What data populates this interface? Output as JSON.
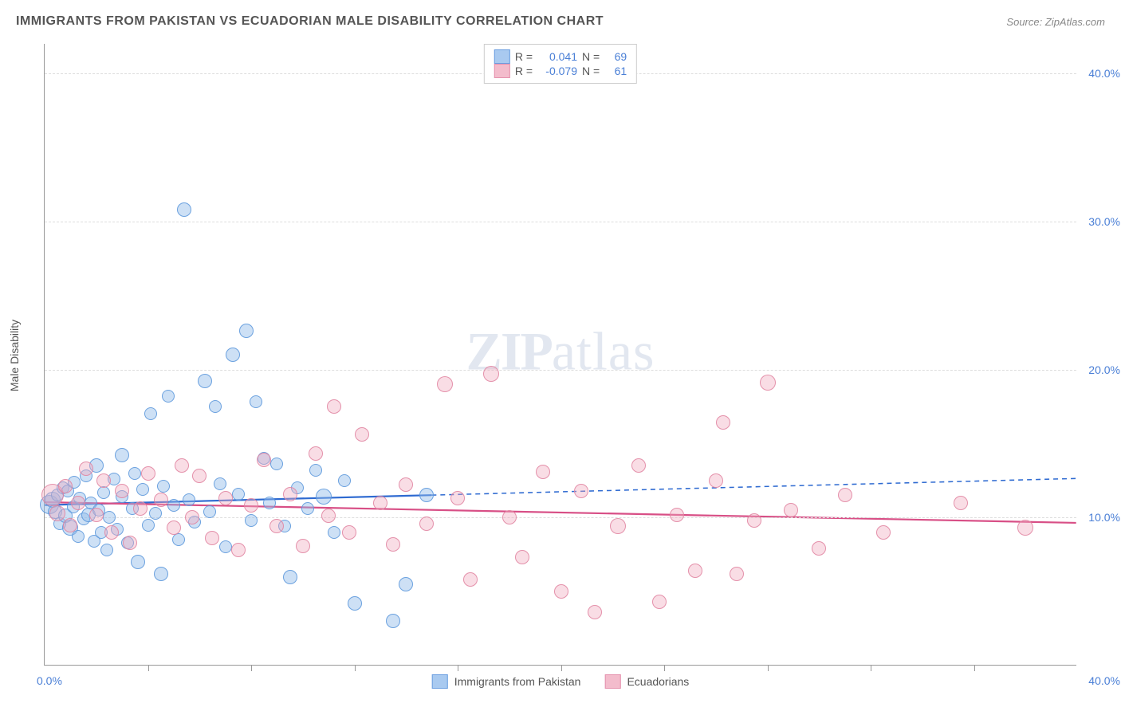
{
  "header": {
    "title": "IMMIGRANTS FROM PAKISTAN VS ECUADORIAN MALE DISABILITY CORRELATION CHART",
    "source_prefix": "Source:",
    "source_name": "ZipAtlas.com"
  },
  "watermark": {
    "zip": "ZIP",
    "atlas": "atlas"
  },
  "chart": {
    "type": "scatter",
    "ylabel": "Male Disability",
    "xlim": [
      0,
      40
    ],
    "ylim": [
      0,
      42
    ],
    "yticks": [
      {
        "v": 10,
        "label": "10.0%"
      },
      {
        "v": 20,
        "label": "20.0%"
      },
      {
        "v": 30,
        "label": "30.0%"
      },
      {
        "v": 40,
        "label": "40.0%"
      }
    ],
    "xticks_minor": [
      4,
      8,
      12,
      16,
      20,
      24,
      28,
      32,
      36
    ],
    "x_start_label": "0.0%",
    "x_end_label": "40.0%",
    "background_color": "#ffffff",
    "grid_color": "#dddddd",
    "axis_color": "#999999",
    "label_color": "#4a7fd6",
    "marker_radius_base": 8,
    "series": {
      "blue": {
        "label": "Immigrants from Pakistan",
        "fill": "rgba(144,186,233,0.45)",
        "stroke": "rgba(90,150,220,0.85)",
        "R": "0.041",
        "N": "69",
        "trend": {
          "y0": 10.8,
          "y1": 12.6,
          "solid_until_x": 15,
          "color": "#2e6ad1",
          "width": 2.2
        },
        "points": [
          [
            0.2,
            10.9,
            12
          ],
          [
            0.3,
            11.2,
            10
          ],
          [
            0.4,
            10.4,
            9
          ],
          [
            0.5,
            11.5,
            8
          ],
          [
            0.6,
            9.6,
            8
          ],
          [
            0.7,
            12.0,
            8
          ],
          [
            0.8,
            10.1,
            9
          ],
          [
            0.9,
            11.8,
            8
          ],
          [
            1.0,
            9.3,
            10
          ],
          [
            1.1,
            10.7,
            8
          ],
          [
            1.15,
            12.4,
            8
          ],
          [
            1.3,
            8.7,
            8
          ],
          [
            1.35,
            11.3,
            8
          ],
          [
            1.5,
            9.9,
            8
          ],
          [
            1.6,
            12.8,
            8
          ],
          [
            1.7,
            10.2,
            9
          ],
          [
            1.8,
            11.0,
            8
          ],
          [
            1.9,
            8.4,
            8
          ],
          [
            2.0,
            13.5,
            9
          ],
          [
            2.1,
            10.5,
            8
          ],
          [
            2.2,
            9.0,
            8
          ],
          [
            2.3,
            11.7,
            8
          ],
          [
            2.4,
            7.8,
            8
          ],
          [
            2.5,
            10.0,
            8
          ],
          [
            2.7,
            12.6,
            8
          ],
          [
            2.8,
            9.2,
            8
          ],
          [
            3.0,
            11.4,
            8
          ],
          [
            3.0,
            14.2,
            9
          ],
          [
            3.2,
            8.3,
            8
          ],
          [
            3.4,
            10.6,
            8
          ],
          [
            3.5,
            13.0,
            8
          ],
          [
            3.6,
            7.0,
            9
          ],
          [
            3.8,
            11.9,
            8
          ],
          [
            4.0,
            9.5,
            8
          ],
          [
            4.1,
            17.0,
            8
          ],
          [
            4.3,
            10.3,
            8
          ],
          [
            4.5,
            6.2,
            9
          ],
          [
            4.6,
            12.1,
            8
          ],
          [
            4.8,
            18.2,
            8
          ],
          [
            5.0,
            10.8,
            8
          ],
          [
            5.2,
            8.5,
            8
          ],
          [
            5.4,
            30.8,
            9
          ],
          [
            5.6,
            11.2,
            8
          ],
          [
            5.8,
            9.7,
            8
          ],
          [
            6.2,
            19.2,
            9
          ],
          [
            6.4,
            10.4,
            8
          ],
          [
            6.6,
            17.5,
            8
          ],
          [
            6.8,
            12.3,
            8
          ],
          [
            7.0,
            8.0,
            8
          ],
          [
            7.3,
            21.0,
            9
          ],
          [
            7.5,
            11.6,
            8
          ],
          [
            7.8,
            22.6,
            9
          ],
          [
            8.0,
            9.8,
            8
          ],
          [
            8.2,
            17.8,
            8
          ],
          [
            8.5,
            14.0,
            8
          ],
          [
            8.7,
            11.0,
            8
          ],
          [
            9.0,
            13.6,
            8
          ],
          [
            9.3,
            9.4,
            8
          ],
          [
            9.5,
            6.0,
            9
          ],
          [
            9.8,
            12.0,
            8
          ],
          [
            10.2,
            10.6,
            8
          ],
          [
            10.5,
            13.2,
            8
          ],
          [
            10.8,
            11.4,
            10
          ],
          [
            11.2,
            9.0,
            8
          ],
          [
            11.6,
            12.5,
            8
          ],
          [
            12.0,
            4.2,
            9
          ],
          [
            13.5,
            3.0,
            9
          ],
          [
            14.0,
            5.5,
            9
          ],
          [
            14.8,
            11.5,
            9
          ]
        ]
      },
      "pink": {
        "label": "Ecuadorians",
        "fill": "rgba(240,170,190,0.40)",
        "stroke": "rgba(225,130,160,0.85)",
        "R": "-0.079",
        "N": "61",
        "trend": {
          "y0": 11.0,
          "y1": 9.6,
          "solid_until_x": 40,
          "color": "#d84f86",
          "width": 2.2
        },
        "points": [
          [
            0.3,
            11.5,
            14
          ],
          [
            0.5,
            10.3,
            10
          ],
          [
            0.8,
            12.1,
            9
          ],
          [
            1.0,
            9.5,
            9
          ],
          [
            1.3,
            11.0,
            9
          ],
          [
            1.6,
            13.3,
            9
          ],
          [
            2.0,
            10.2,
            9
          ],
          [
            2.3,
            12.5,
            9
          ],
          [
            2.6,
            9.0,
            9
          ],
          [
            3.0,
            11.8,
            9
          ],
          [
            3.3,
            8.3,
            9
          ],
          [
            3.7,
            10.6,
            9
          ],
          [
            4.0,
            13.0,
            9
          ],
          [
            4.5,
            11.2,
            9
          ],
          [
            5.0,
            9.3,
            9
          ],
          [
            5.3,
            13.5,
            9
          ],
          [
            5.7,
            10.0,
            9
          ],
          [
            6.0,
            12.8,
            9
          ],
          [
            6.5,
            8.6,
            9
          ],
          [
            7.0,
            11.3,
            9
          ],
          [
            7.5,
            7.8,
            9
          ],
          [
            8.0,
            10.8,
            9
          ],
          [
            8.5,
            13.9,
            9
          ],
          [
            9.0,
            9.4,
            9
          ],
          [
            9.5,
            11.6,
            9
          ],
          [
            10.0,
            8.1,
            9
          ],
          [
            10.5,
            14.3,
            9
          ],
          [
            11.0,
            10.1,
            9
          ],
          [
            11.2,
            17.5,
            9
          ],
          [
            11.8,
            9.0,
            9
          ],
          [
            12.3,
            15.6,
            9
          ],
          [
            13.0,
            11.0,
            9
          ],
          [
            13.5,
            8.2,
            9
          ],
          [
            14.0,
            12.2,
            9
          ],
          [
            14.8,
            9.6,
            9
          ],
          [
            15.5,
            19.0,
            10
          ],
          [
            16.0,
            11.3,
            9
          ],
          [
            16.5,
            5.8,
            9
          ],
          [
            17.3,
            19.7,
            10
          ],
          [
            18.0,
            10.0,
            9
          ],
          [
            18.5,
            7.3,
            9
          ],
          [
            19.3,
            13.1,
            9
          ],
          [
            20.0,
            5.0,
            9
          ],
          [
            20.8,
            11.8,
            9
          ],
          [
            21.3,
            3.6,
            9
          ],
          [
            22.2,
            9.4,
            10
          ],
          [
            23.0,
            13.5,
            9
          ],
          [
            23.8,
            4.3,
            9
          ],
          [
            24.5,
            10.2,
            9
          ],
          [
            25.2,
            6.4,
            9
          ],
          [
            26.0,
            12.5,
            9
          ],
          [
            26.3,
            16.4,
            9
          ],
          [
            26.8,
            6.2,
            9
          ],
          [
            27.5,
            9.8,
            9
          ],
          [
            28.0,
            19.1,
            10
          ],
          [
            28.9,
            10.5,
            9
          ],
          [
            30.0,
            7.9,
            9
          ],
          [
            31.0,
            11.5,
            9
          ],
          [
            32.5,
            9.0,
            9
          ],
          [
            35.5,
            11.0,
            9
          ],
          [
            38.0,
            9.3,
            10
          ]
        ]
      }
    },
    "legend_bottom": [
      {
        "swatch_fill": "#a9caf0",
        "swatch_stroke": "#6b9ee0",
        "key": "blue"
      },
      {
        "swatch_fill": "#f3bccc",
        "swatch_stroke": "#e591ad",
        "key": "pink"
      }
    ],
    "legend_top": {
      "R_label": "R =",
      "N_label": "N ="
    }
  }
}
